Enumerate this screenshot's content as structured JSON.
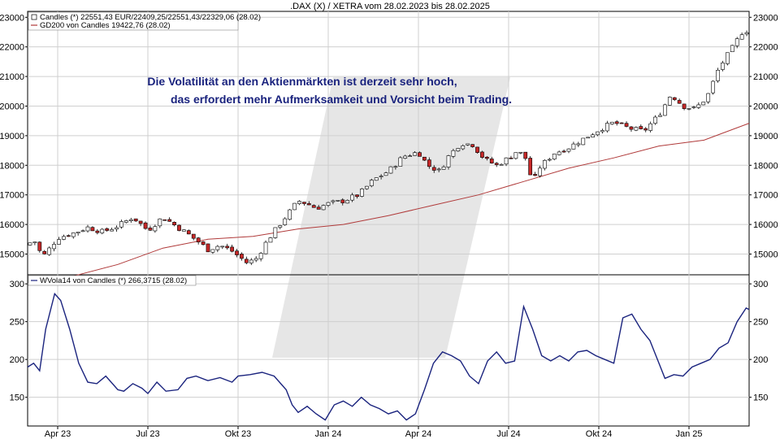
{
  "chart_data": {
    "title": ".DAX (X) / XETRA vom 28.02.2023 bis 28.02.2025",
    "annotation": [
      "Die Volatilität an den Aktienmärkten ist derzeit sehr hoch,",
      "das erfordert mehr Aufmerksamkeit und Vorsicht beim Trading."
    ],
    "x_ticks": [
      "Apr 23",
      "Jul 23",
      "Okt 23",
      "Jan 24",
      "Apr 24",
      "Jul 24",
      "Okt 24",
      "Jan 25"
    ],
    "x_tick_months": [
      1,
      4,
      7,
      10,
      13,
      16,
      19,
      22
    ],
    "x_range_months": [
      0,
      24
    ],
    "colors": {
      "up": "#ffffff",
      "down": "#c62828",
      "gd200": "#b03a3a",
      "vola": "#1a237e",
      "grid": "#cfcfcf",
      "watermark": "#e6e6e6"
    },
    "panels": [
      {
        "type": "candlestick",
        "legend": [
          {
            "text": "Candles (*) 22551,43 EUR/22409,25/22551,43/22329,06 (28.02)",
            "marker": "box"
          },
          {
            "text": "GD200 von Candles 19422,76 (28.02)",
            "marker": "line"
          }
        ],
        "y_ticks": [
          15000,
          16000,
          17000,
          18000,
          19000,
          20000,
          21000,
          22000,
          23000
        ],
        "ylim": [
          14300,
          23200
        ],
        "candle_close_path": [
          [
            0,
            15300
          ],
          [
            0.2,
            15500
          ],
          [
            0.5,
            14900
          ],
          [
            0.7,
            15150
          ],
          [
            1.0,
            15550
          ],
          [
            1.5,
            15700
          ],
          [
            2.0,
            15900
          ],
          [
            2.5,
            15750
          ],
          [
            3.0,
            15950
          ],
          [
            3.5,
            16250
          ],
          [
            4.0,
            15800
          ],
          [
            4.5,
            16250
          ],
          [
            5.0,
            15900
          ],
          [
            5.3,
            15700
          ],
          [
            5.7,
            15400
          ],
          [
            6.0,
            15150
          ],
          [
            6.4,
            15300
          ],
          [
            6.8,
            15100
          ],
          [
            7.3,
            14700
          ],
          [
            7.6,
            14850
          ],
          [
            8.0,
            15500
          ],
          [
            8.5,
            16150
          ],
          [
            9.0,
            16800
          ],
          [
            9.3,
            16700
          ],
          [
            9.6,
            16550
          ],
          [
            10.0,
            16700
          ],
          [
            10.5,
            16800
          ],
          [
            11.0,
            17000
          ],
          [
            11.5,
            17500
          ],
          [
            12.0,
            17800
          ],
          [
            12.5,
            18300
          ],
          [
            13.0,
            18450
          ],
          [
            13.3,
            18000
          ],
          [
            13.7,
            17800
          ],
          [
            14.0,
            18300
          ],
          [
            14.4,
            18750
          ],
          [
            14.8,
            18700
          ],
          [
            15.2,
            18200
          ],
          [
            15.6,
            18000
          ],
          [
            16.0,
            18250
          ],
          [
            16.3,
            18500
          ],
          [
            16.6,
            18200
          ],
          [
            16.8,
            17350
          ],
          [
            17.0,
            17900
          ],
          [
            17.5,
            18400
          ],
          [
            18.0,
            18600
          ],
          [
            18.5,
            18900
          ],
          [
            19.0,
            19200
          ],
          [
            19.5,
            19450
          ],
          [
            20.0,
            19250
          ],
          [
            20.5,
            19150
          ],
          [
            21.0,
            19700
          ],
          [
            21.4,
            20400
          ],
          [
            21.8,
            20000
          ],
          [
            22.2,
            19900
          ],
          [
            22.6,
            20300
          ],
          [
            23.0,
            21300
          ],
          [
            23.4,
            21900
          ],
          [
            23.8,
            22550
          ],
          [
            24.0,
            22550
          ]
        ],
        "gd200": [
          [
            1.5,
            14250
          ],
          [
            3.0,
            14650
          ],
          [
            4.5,
            15200
          ],
          [
            6.0,
            15500
          ],
          [
            7.5,
            15600
          ],
          [
            9.0,
            15850
          ],
          [
            10.5,
            16000
          ],
          [
            12.0,
            16300
          ],
          [
            13.5,
            16650
          ],
          [
            15.0,
            17000
          ],
          [
            16.5,
            17450
          ],
          [
            18.0,
            17900
          ],
          [
            19.5,
            18250
          ],
          [
            21.0,
            18650
          ],
          [
            22.5,
            18850
          ],
          [
            24.0,
            19420
          ]
        ]
      },
      {
        "type": "line",
        "legend": [
          {
            "text": "WVola14 von Candles (*) 266,3715 (28.02)",
            "marker": "line"
          }
        ],
        "y_ticks": [
          150,
          200,
          250,
          300
        ],
        "ylim": [
          112,
          312
        ],
        "series": [
          {
            "values": [
              [
                0,
                190
              ],
              [
                0.2,
                195
              ],
              [
                0.4,
                185
              ],
              [
                0.6,
                240
              ],
              [
                0.9,
                287
              ],
              [
                1.1,
                278
              ],
              [
                1.4,
                240
              ],
              [
                1.7,
                195
              ],
              [
                2.0,
                170
              ],
              [
                2.3,
                168
              ],
              [
                2.6,
                178
              ],
              [
                3.0,
                160
              ],
              [
                3.2,
                158
              ],
              [
                3.5,
                168
              ],
              [
                3.8,
                162
              ],
              [
                4.0,
                155
              ],
              [
                4.3,
                170
              ],
              [
                4.6,
                158
              ],
              [
                5.0,
                160
              ],
              [
                5.3,
                175
              ],
              [
                5.6,
                178
              ],
              [
                6.0,
                172
              ],
              [
                6.4,
                176
              ],
              [
                6.8,
                170
              ],
              [
                7.0,
                178
              ],
              [
                7.4,
                180
              ],
              [
                7.8,
                183
              ],
              [
                8.2,
                178
              ],
              [
                8.6,
                160
              ],
              [
                8.8,
                140
              ],
              [
                9.0,
                130
              ],
              [
                9.3,
                138
              ],
              [
                9.6,
                128
              ],
              [
                9.9,
                120
              ],
              [
                10.2,
                140
              ],
              [
                10.5,
                145
              ],
              [
                10.8,
                138
              ],
              [
                11.1,
                150
              ],
              [
                11.4,
                140
              ],
              [
                11.7,
                135
              ],
              [
                12.0,
                128
              ],
              [
                12.3,
                132
              ],
              [
                12.6,
                120
              ],
              [
                12.9,
                128
              ],
              [
                13.2,
                160
              ],
              [
                13.5,
                195
              ],
              [
                13.8,
                210
              ],
              [
                14.1,
                205
              ],
              [
                14.4,
                198
              ],
              [
                14.7,
                178
              ],
              [
                15.0,
                168
              ],
              [
                15.3,
                198
              ],
              [
                15.6,
                210
              ],
              [
                15.9,
                195
              ],
              [
                16.2,
                198
              ],
              [
                16.5,
                270
              ],
              [
                16.8,
                240
              ],
              [
                17.1,
                205
              ],
              [
                17.4,
                198
              ],
              [
                17.7,
                205
              ],
              [
                18.0,
                198
              ],
              [
                18.3,
                210
              ],
              [
                18.6,
                212
              ],
              [
                18.9,
                205
              ],
              [
                19.2,
                200
              ],
              [
                19.5,
                195
              ],
              [
                19.8,
                255
              ],
              [
                20.1,
                260
              ],
              [
                20.4,
                240
              ],
              [
                20.7,
                225
              ],
              [
                21.0,
                195
              ],
              [
                21.2,
                175
              ],
              [
                21.5,
                180
              ],
              [
                21.8,
                178
              ],
              [
                22.1,
                190
              ],
              [
                22.4,
                195
              ],
              [
                22.7,
                200
              ],
              [
                23.0,
                215
              ],
              [
                23.3,
                222
              ],
              [
                23.6,
                250
              ],
              [
                23.9,
                268
              ],
              [
                24.0,
                266
              ]
            ]
          }
        ]
      }
    ]
  }
}
